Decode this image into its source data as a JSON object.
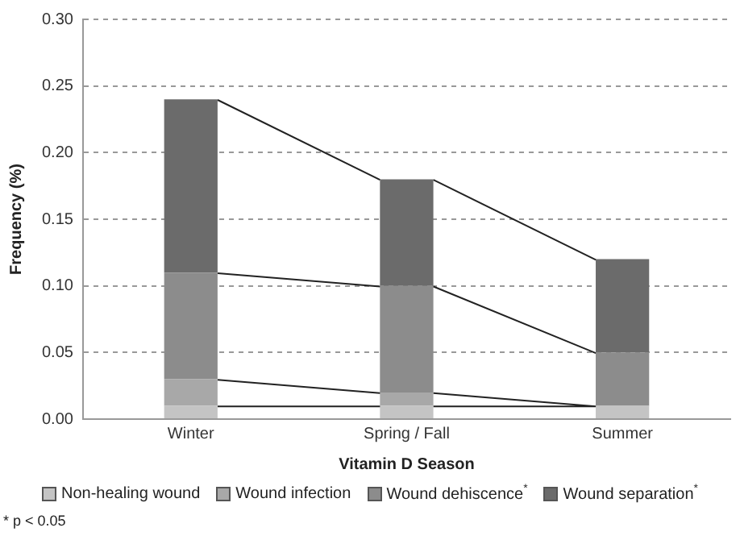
{
  "chart_data": {
    "type": "bar",
    "stacked": true,
    "xlabel": "Vitamin D Season",
    "ylabel": "Frequency (%)",
    "categories": [
      "Winter",
      "Spring / Fall",
      "Summer"
    ],
    "series": [
      {
        "name": "Non-healing wound",
        "color": "#c4c4c4",
        "values": [
          0.01,
          0.01,
          0.01
        ]
      },
      {
        "name": "Wound infection",
        "color": "#a8a8a8",
        "values": [
          0.02,
          0.01,
          0
        ]
      },
      {
        "name": "Wound dehiscence$^{*}$",
        "color": "#8c8c8c",
        "values": [
          0.08,
          0.08,
          0.04
        ]
      },
      {
        "name": "Wound separation$^{*}$",
        "color": "#6b6b6b",
        "values": [
          0.13,
          0.08,
          0.07
        ]
      }
    ],
    "ylim": [
      0,
      0.3
    ],
    "yticks": [
      {
        "value": 0,
        "label": "0.00"
      },
      {
        "value": 0.05,
        "label": "0.05"
      },
      {
        "value": 0.1,
        "label": "0.10"
      },
      {
        "value": 0.15,
        "label": "0.15"
      },
      {
        "value": 0.2,
        "label": "0.20"
      },
      {
        "value": 0.25,
        "label": "0.25"
      },
      {
        "value": 0.3,
        "label": "0.30"
      }
    ],
    "grid": "y",
    "legend": "bottom",
    "annotations": [
      "* p < 0.05"
    ]
  }
}
